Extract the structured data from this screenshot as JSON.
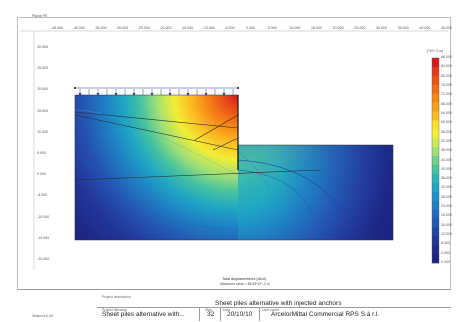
{
  "header": {
    "corner_label": "Plaxis PE",
    "top_axis_ticks": [
      "-45.000",
      "-40.000",
      "-35.000",
      "-30.000",
      "-25.000",
      "-20.000",
      "-15.000",
      "-10.000",
      "-5.000",
      "0.000",
      "5.000",
      "10.000",
      "15.000",
      "20.000",
      "25.000",
      "30.000",
      "35.000",
      "40.000",
      "45.000"
    ]
  },
  "left_axis_ticks": [
    "30.000",
    "25.000",
    "20.000",
    "15.000",
    "10.000",
    "5.000",
    "0.000",
    "-5.000",
    "-10.000",
    "-15.000",
    "-20.000"
  ],
  "legend": {
    "unit_label": "[*10^-3 m]",
    "values": [
      "88.000",
      "84.000",
      "80.000",
      "76.000",
      "72.000",
      "68.000",
      "64.000",
      "60.000",
      "56.000",
      "52.000",
      "48.000",
      "44.000",
      "40.000",
      "36.000",
      "32.000",
      "28.000",
      "24.000",
      "20.000",
      "16.000",
      "12.000",
      "8.000",
      "4.000",
      "0.000"
    ],
    "colors": [
      "#d7191c",
      "#e23a1a",
      "#ec5418",
      "#f26d17",
      "#f68716",
      "#f9a119",
      "#fbba21",
      "#fce02c",
      "#f1ee36",
      "#c9e95a",
      "#9fdf76",
      "#72d189",
      "#49c49d",
      "#2eb6b4",
      "#1fa6c4",
      "#1b93c8",
      "#1f7fc3",
      "#226abd",
      "#2456b3",
      "#2344a7",
      "#22359a",
      "#1f2b8c",
      "#1c2480"
    ]
  },
  "plot_caption": {
    "line1": "Total displacements (Utot)",
    "line2": "Maximum value = 88.53*10^-3 m"
  },
  "title_block": {
    "project_label": "Project description",
    "project_title": "Sheet piles alternative with injected anchors",
    "file_label": "Project filename",
    "file_name": "Sheet piles alternative with...",
    "step_label": "Step",
    "step_value": "32",
    "date_label": "Date",
    "date_value": "20/10/10",
    "user_label": "User name",
    "company": "ArcelorMittal Commercial RPS S.à r.l.",
    "version_label": "Version 8.6.0.0"
  },
  "colors": {
    "frame_border": "#bdbdbd",
    "soil_low": "#1c2480",
    "soil_high": "#d7191c"
  }
}
